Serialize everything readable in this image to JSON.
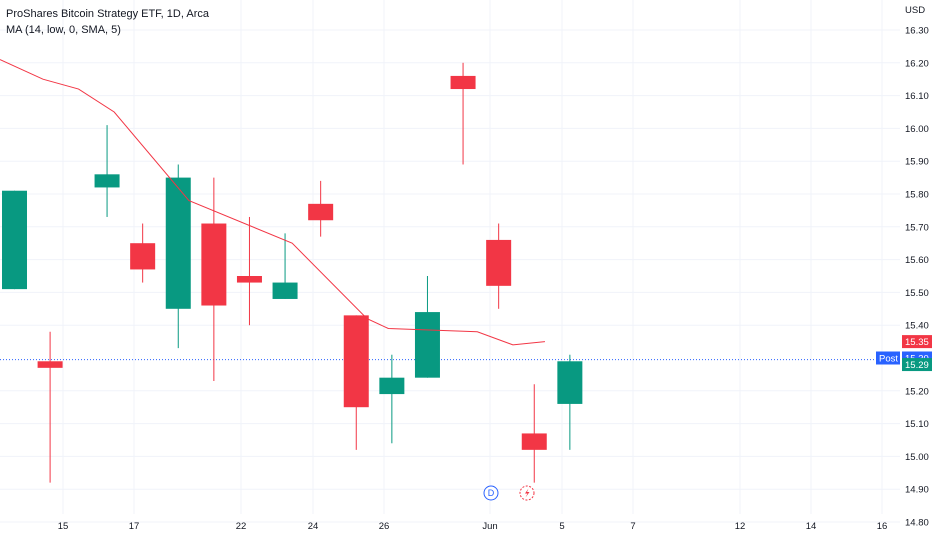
{
  "legend": {
    "title": "ProShares Bitcoin Strategy ETF, 1D, Arca",
    "indicator": "MA (14, low, 0, SMA, 5)"
  },
  "colors": {
    "up": "#089981",
    "down": "#f23645",
    "ma": "#f23645",
    "grid": "#f0f3fa",
    "dotted": "#2962ff",
    "post": "#2962ff"
  },
  "chart_data": {
    "type": "candlestick",
    "currency_label": "USD",
    "ylim": [
      14.78,
      16.37
    ],
    "y_ticks": [
      "16.30",
      "16.20",
      "16.10",
      "16.00",
      "15.90",
      "15.80",
      "15.70",
      "15.60",
      "15.50",
      "15.40",
      "15.20",
      "15.10",
      "15.00",
      "14.90",
      "14.80"
    ],
    "x_ticks": [
      "15",
      "17",
      "22",
      "24",
      "26",
      "Jun",
      "5",
      "7",
      "12",
      "14",
      "16"
    ],
    "candles": [
      {
        "o": 15.51,
        "h": 15.81,
        "l": 15.51,
        "c": 15.81
      },
      {
        "o": 15.29,
        "h": 15.38,
        "l": 14.92,
        "c": 15.27
      },
      {
        "o": 15.82,
        "h": 16.01,
        "l": 15.73,
        "c": 15.86
      },
      {
        "o": 15.65,
        "h": 15.71,
        "l": 15.53,
        "c": 15.57
      },
      {
        "o": 15.45,
        "h": 15.89,
        "l": 15.33,
        "c": 15.85
      },
      {
        "o": 15.71,
        "h": 15.85,
        "l": 15.23,
        "c": 15.46
      },
      {
        "o": 15.55,
        "h": 15.73,
        "l": 15.4,
        "c": 15.53
      },
      {
        "o": 15.48,
        "h": 15.68,
        "l": 15.48,
        "c": 15.53
      },
      {
        "o": 15.77,
        "h": 15.84,
        "l": 15.67,
        "c": 15.72
      },
      {
        "o": 15.43,
        "h": 15.43,
        "l": 15.02,
        "c": 15.15
      },
      {
        "o": 15.19,
        "h": 15.31,
        "l": 15.04,
        "c": 15.24
      },
      {
        "o": 15.24,
        "h": 15.55,
        "l": 15.24,
        "c": 15.44
      },
      {
        "o": 16.16,
        "h": 16.2,
        "l": 15.89,
        "c": 16.12
      },
      {
        "o": 15.66,
        "h": 15.71,
        "l": 15.45,
        "c": 15.52
      },
      {
        "o": 15.07,
        "h": 15.22,
        "l": 14.92,
        "c": 15.02
      },
      {
        "o": 15.16,
        "h": 15.31,
        "l": 15.02,
        "c": 15.29
      }
    ],
    "candle_slots": [
      0.0,
      1.0,
      2.6,
      3.6,
      4.6,
      5.6,
      6.6,
      7.6,
      8.6,
      9.6,
      10.6,
      11.6,
      12.6,
      13.6,
      14.6,
      15.6
    ],
    "ma": [
      {
        "slot": 0.0,
        "v": 16.21
      },
      {
        "slot": 0.8,
        "v": 16.15
      },
      {
        "slot": 1.8,
        "v": 16.12
      },
      {
        "slot": 2.8,
        "v": 16.05
      },
      {
        "slot": 4.9,
        "v": 15.78
      },
      {
        "slot": 7.8,
        "v": 15.65
      },
      {
        "slot": 9.9,
        "v": 15.42
      },
      {
        "slot": 10.5,
        "v": 15.39
      },
      {
        "slot": 13.0,
        "v": 15.38
      },
      {
        "slot": 14.0,
        "v": 15.34
      },
      {
        "slot": 14.9,
        "v": 15.35
      }
    ],
    "price_tags": {
      "ma": "15.35",
      "post_label": "Post",
      "post": "15.30",
      "last": "15.29"
    },
    "events": {
      "dividend": "D"
    }
  }
}
